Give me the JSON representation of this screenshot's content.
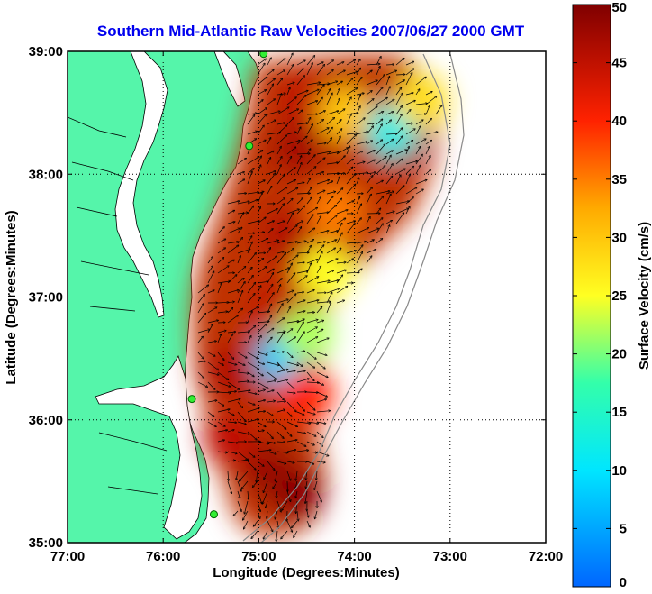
{
  "chart_data": {
    "type": "heatmap",
    "title": "Southern Mid-Atlantic Raw Velocities 2007/06/27 2000 GMT",
    "xlabel": "Longitude (Degrees:Minutes)",
    "ylabel": "Latitude (Degrees:Minutes)",
    "x_ticks": [
      "77:00",
      "76:00",
      "75:00",
      "74:00",
      "73:00",
      "72:00"
    ],
    "y_ticks": [
      "39:00",
      "38:00",
      "37:00",
      "36:00",
      "35:00"
    ],
    "xlim": [
      -77,
      -72
    ],
    "ylim": [
      35,
      39
    ],
    "grid": true,
    "colorbar": {
      "label": "Surface Velocity (cm/s)",
      "range": [
        0,
        50
      ],
      "ticks": [
        "0",
        "5",
        "10",
        "15",
        "20",
        "25",
        "30",
        "35",
        "40",
        "45",
        "50"
      ]
    },
    "stations": [
      {
        "lon": -74.95,
        "lat": 38.98
      },
      {
        "lon": -75.1,
        "lat": 38.23
      },
      {
        "lon": -75.7,
        "lat": 36.17
      },
      {
        "lon": -75.47,
        "lat": 35.23
      }
    ],
    "velocity_regions": [
      {
        "lon": -74.5,
        "lat": 38.6,
        "speed": 45
      },
      {
        "lon": -74.6,
        "lat": 38.2,
        "speed": 47
      },
      {
        "lon": -74.1,
        "lat": 38.5,
        "speed": 30
      },
      {
        "lon": -73.6,
        "lat": 38.35,
        "speed": 12
      },
      {
        "lon": -73.3,
        "lat": 38.6,
        "speed": 28
      },
      {
        "lon": -74.2,
        "lat": 37.7,
        "speed": 35
      },
      {
        "lon": -74.7,
        "lat": 37.5,
        "speed": 46
      },
      {
        "lon": -74.3,
        "lat": 37.2,
        "speed": 25
      },
      {
        "lon": -74.8,
        "lat": 36.9,
        "speed": 45
      },
      {
        "lon": -74.75,
        "lat": 36.5,
        "speed": 8
      },
      {
        "lon": -74.5,
        "lat": 36.7,
        "speed": 22
      },
      {
        "lon": -75.3,
        "lat": 36.4,
        "speed": 46
      },
      {
        "lon": -74.5,
        "lat": 36.2,
        "speed": 40
      },
      {
        "lon": -74.9,
        "lat": 35.6,
        "speed": 48
      },
      {
        "lon": -74.6,
        "lat": 35.4,
        "speed": 49
      },
      {
        "lon": -75.3,
        "lat": 35.85,
        "speed": 45
      }
    ]
  }
}
